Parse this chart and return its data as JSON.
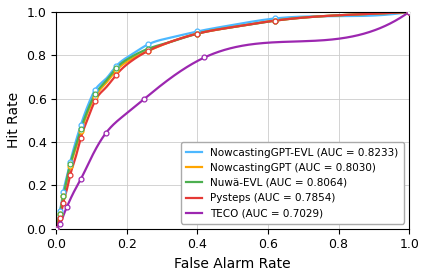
{
  "title": "",
  "xlabel": "False Alarm Rate",
  "ylabel": "Hit Rate",
  "xlim": [
    0.0,
    1.0
  ],
  "ylim": [
    0.0,
    1.0
  ],
  "grid": true,
  "series": [
    {
      "label": "NowcastingGPT-EVL (AUC = 0.8233)",
      "color": "#4db8ff",
      "marker": "o",
      "x": [
        0.0,
        0.005,
        0.01,
        0.015,
        0.02,
        0.03,
        0.04,
        0.055,
        0.07,
        0.09,
        0.11,
        0.14,
        0.17,
        0.21,
        0.26,
        0.32,
        0.4,
        0.5,
        0.62,
        0.75,
        1.0
      ],
      "y": [
        0.0,
        0.04,
        0.08,
        0.12,
        0.17,
        0.24,
        0.31,
        0.4,
        0.48,
        0.57,
        0.64,
        0.69,
        0.75,
        0.8,
        0.85,
        0.88,
        0.91,
        0.94,
        0.97,
        0.98,
        1.0
      ]
    },
    {
      "label": "NowcastingGPT (AUC = 0.8030)",
      "color": "#ffa500",
      "marker": "o",
      "x": [
        0.0,
        0.005,
        0.01,
        0.015,
        0.02,
        0.03,
        0.04,
        0.055,
        0.07,
        0.09,
        0.11,
        0.14,
        0.17,
        0.21,
        0.26,
        0.32,
        0.4,
        0.5,
        0.62,
        0.75,
        1.0
      ],
      "y": [
        0.0,
        0.03,
        0.07,
        0.11,
        0.15,
        0.22,
        0.29,
        0.37,
        0.45,
        0.54,
        0.61,
        0.67,
        0.73,
        0.78,
        0.82,
        0.86,
        0.9,
        0.93,
        0.96,
        0.98,
        1.0
      ]
    },
    {
      "label": "Nuwä-EVL (AUC = 0.8064)",
      "color": "#4caf50",
      "marker": "o",
      "x": [
        0.0,
        0.005,
        0.01,
        0.015,
        0.02,
        0.03,
        0.04,
        0.055,
        0.07,
        0.09,
        0.11,
        0.14,
        0.17,
        0.21,
        0.26,
        0.32,
        0.4,
        0.5,
        0.62,
        0.75,
        1.0
      ],
      "y": [
        0.0,
        0.03,
        0.07,
        0.11,
        0.15,
        0.23,
        0.3,
        0.38,
        0.46,
        0.55,
        0.62,
        0.68,
        0.74,
        0.79,
        0.83,
        0.86,
        0.9,
        0.93,
        0.96,
        0.98,
        1.0
      ]
    },
    {
      "label": "Pysteps (AUC = 0.7854)",
      "color": "#e53935",
      "marker": "o",
      "x": [
        0.0,
        0.005,
        0.01,
        0.015,
        0.02,
        0.03,
        0.04,
        0.055,
        0.07,
        0.09,
        0.11,
        0.14,
        0.17,
        0.21,
        0.26,
        0.32,
        0.4,
        0.5,
        0.62,
        0.75,
        1.0
      ],
      "y": [
        0.0,
        0.02,
        0.05,
        0.08,
        0.12,
        0.18,
        0.25,
        0.33,
        0.42,
        0.51,
        0.59,
        0.65,
        0.71,
        0.77,
        0.82,
        0.86,
        0.9,
        0.93,
        0.96,
        0.98,
        1.0
      ]
    },
    {
      "label": "TECO (AUC = 0.7029)",
      "color": "#9c27b0",
      "marker": "o",
      "x": [
        0.0,
        0.005,
        0.01,
        0.02,
        0.03,
        0.05,
        0.07,
        0.1,
        0.14,
        0.19,
        0.25,
        0.32,
        0.42,
        0.55,
        1.0
      ],
      "y": [
        0.0,
        0.01,
        0.02,
        0.06,
        0.1,
        0.17,
        0.23,
        0.33,
        0.44,
        0.52,
        0.6,
        0.69,
        0.79,
        0.85,
        1.0
      ]
    }
  ],
  "legend_loc": "lower right",
  "legend_fontsize": 7.5,
  "tick_fontsize": 9,
  "label_fontsize": 10,
  "marker_size": 3.5,
  "linewidth": 1.6,
  "marker_every_n": 2
}
